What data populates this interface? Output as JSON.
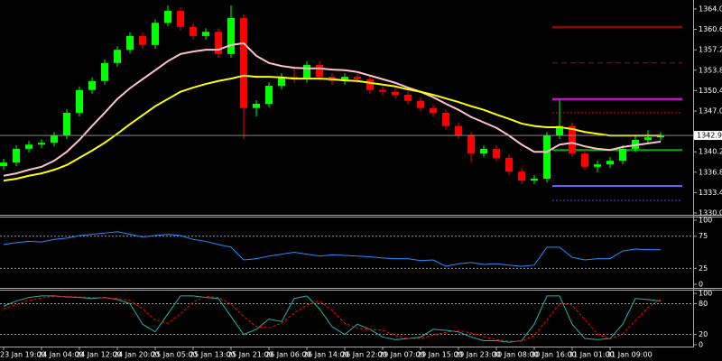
{
  "chart_data": [
    {
      "type": "candlestick",
      "categories": [
        "23 Jan 19:00",
        null,
        null,
        "24 Jan 04:00",
        null,
        null,
        "24 Jan 12:00",
        null,
        null,
        "24 Jan 20:00",
        null,
        null,
        "25 Jan 05:00",
        null,
        null,
        "25 Jan 13:00",
        null,
        null,
        "25 Jan 21:00",
        null,
        null,
        "26 Jan 06:00",
        null,
        null,
        "26 Jan 14:00",
        null,
        null,
        "26 Jan 22:00",
        null,
        null,
        "29 Jan 07:00",
        null,
        null,
        "29 Jan 15:00",
        null,
        null,
        "29 Jan 23:00",
        null,
        null,
        "30 Jan 08:00",
        null,
        null,
        "30 Jan 16:00",
        null,
        null,
        "31 Jan 01:00",
        null,
        null,
        "31 Jan 09:00",
        null,
        null,
        null,
        null
      ],
      "open": [
        1337.8,
        1338.4,
        1340.7,
        1341.4,
        1341.7,
        1342.9,
        1346.7,
        1350.5,
        1352.0,
        1355.0,
        1357.2,
        1359.5,
        1358.0,
        1361.7,
        1363.7,
        1361.0,
        1359.5,
        1360.2,
        1356.5,
        1362.5,
        1347.5,
        1348.2,
        1351.2,
        1352.7,
        1352.3,
        1354.7,
        1352.7,
        1352.0,
        1352.7,
        1352.3,
        1350.5,
        1350.2,
        1349.7,
        1348.7,
        1347.5,
        1346.7,
        1344.5,
        1342.9,
        1339.9,
        1340.7,
        1339.2,
        1336.9,
        1335.4,
        1335.7,
        1342.9,
        1344.5,
        1339.9,
        1337.7,
        1338.1,
        1338.7,
        1340.7,
        1342.2,
        1342.6
      ],
      "high": [
        1339.0,
        1341.3,
        1342.0,
        1342.3,
        1343.5,
        1347.3,
        1351.1,
        1352.6,
        1355.6,
        1357.8,
        1360.1,
        1360.1,
        1362.3,
        1364.6,
        1364.3,
        1361.6,
        1360.8,
        1360.8,
        1364.6,
        1363.1,
        1348.8,
        1351.8,
        1353.3,
        1354.5,
        1355.3,
        1355.3,
        1353.3,
        1353.3,
        1353.3,
        1352.9,
        1351.1,
        1350.8,
        1350.3,
        1349.3,
        1348.1,
        1347.3,
        1345.1,
        1343.5,
        1341.3,
        1341.3,
        1339.8,
        1337.5,
        1336.3,
        1343.5,
        1348.9,
        1345.1,
        1340.5,
        1338.7,
        1339.3,
        1341.3,
        1342.8,
        1343.8,
        1343.5
      ],
      "low": [
        1337.2,
        1337.8,
        1340.1,
        1340.8,
        1341.1,
        1342.3,
        1346.1,
        1349.9,
        1351.4,
        1354.4,
        1356.6,
        1357.4,
        1357.4,
        1361.1,
        1360.4,
        1358.9,
        1358.9,
        1355.9,
        1355.9,
        1342.3,
        1346.1,
        1347.6,
        1350.6,
        1351.7,
        1351.7,
        1352.1,
        1351.4,
        1351.4,
        1351.7,
        1349.9,
        1349.6,
        1349.1,
        1348.1,
        1346.9,
        1346.1,
        1343.9,
        1342.3,
        1338.5,
        1339.3,
        1338.6,
        1336.3,
        1334.8,
        1334.8,
        1335.1,
        1342.3,
        1339.3,
        1337.1,
        1336.8,
        1337.5,
        1338.1,
        1340.1,
        1341.6,
        1342.0
      ],
      "close": [
        1338.4,
        1340.7,
        1341.4,
        1341.7,
        1342.9,
        1346.7,
        1350.5,
        1352.0,
        1355.0,
        1357.2,
        1359.5,
        1358.0,
        1361.7,
        1363.7,
        1361.0,
        1359.5,
        1360.2,
        1356.5,
        1362.5,
        1347.5,
        1348.2,
        1351.2,
        1352.7,
        1352.3,
        1354.7,
        1352.7,
        1352.0,
        1352.7,
        1352.3,
        1350.5,
        1350.2,
        1349.7,
        1348.7,
        1347.5,
        1346.7,
        1344.5,
        1342.9,
        1339.9,
        1340.7,
        1339.2,
        1336.9,
        1335.4,
        1335.7,
        1342.9,
        1344.5,
        1339.9,
        1337.7,
        1338.1,
        1338.7,
        1340.7,
        1342.2,
        1342.6,
        1342.93
      ],
      "up_color": "#00ff00",
      "down_color": "#ff0000",
      "series": [
        {
          "color": "#ffc0cb",
          "values": [
            1336.2,
            1336.6,
            1337.2,
            1337.7,
            1338.7,
            1340.2,
            1342.2,
            1344.5,
            1346.7,
            1349.0,
            1350.8,
            1352.3,
            1353.8,
            1355.3,
            1356.5,
            1356.9,
            1357.2,
            1357.2,
            1358.0,
            1358.3,
            1356.2,
            1355.0,
            1354.5,
            1354.2,
            1354.1,
            1354.1,
            1353.9,
            1353.8,
            1353.5,
            1352.9,
            1352.3,
            1351.7,
            1350.9,
            1350.2,
            1349.3,
            1348.2,
            1347.2,
            1346.0,
            1345.1,
            1344.2,
            1342.9,
            1341.4,
            1340.2,
            1340.2,
            1341.4,
            1341.7,
            1341.1,
            1340.7,
            1340.5,
            1341.0,
            1341.3,
            1341.6,
            1341.9
          ]
        },
        {
          "color": "#ffff00",
          "values": [
            1335.4,
            1335.7,
            1336.2,
            1336.6,
            1337.2,
            1338.0,
            1339.2,
            1340.4,
            1341.7,
            1343.2,
            1344.8,
            1346.3,
            1347.8,
            1349.0,
            1350.2,
            1350.9,
            1351.5,
            1352.0,
            1352.4,
            1352.9,
            1352.7,
            1352.7,
            1352.6,
            1352.4,
            1352.4,
            1352.4,
            1352.3,
            1352.1,
            1352.0,
            1351.7,
            1351.4,
            1351.1,
            1350.6,
            1350.2,
            1349.7,
            1349.1,
            1348.5,
            1347.8,
            1347.2,
            1346.4,
            1345.7,
            1344.9,
            1344.5,
            1344.3,
            1344.3,
            1344.0,
            1343.5,
            1343.2,
            1342.9,
            1342.9,
            1342.9,
            1342.9,
            1342.9
          ]
        }
      ],
      "levels": [
        {
          "value": 1361.0,
          "color": "#b00000",
          "style": "solid"
        },
        {
          "value": 1355.0,
          "color": "#b00000",
          "style": "dashed"
        },
        {
          "value": 1349.0,
          "color": "#ff00ff",
          "style": "solid"
        },
        {
          "value": 1346.7,
          "color": "#ff0000",
          "style": "dotted"
        },
        {
          "value": 1340.5,
          "color": "#00b000",
          "style": "solid"
        },
        {
          "value": 1334.5,
          "color": "#6a6aff",
          "style": "solid"
        },
        {
          "value": 1332.1,
          "color": "#4a4aff",
          "style": "dotted"
        }
      ],
      "last_price": 1342.93,
      "ylim": [
        1329.7,
        1365.5
      ],
      "yticks": [
        {
          "value": 1364,
          "label": "1364.00"
        },
        {
          "value": 1360.6,
          "label": "1360.60"
        },
        {
          "value": 1357.2,
          "label": "1357.20"
        },
        {
          "value": 1353.8,
          "label": "1353.80"
        },
        {
          "value": 1350.4,
          "label": "1350.40"
        },
        {
          "value": 1347,
          "label": "1347.00"
        },
        {
          "value": 1340.2,
          "label": "1340.20"
        },
        {
          "value": 1336.8,
          "label": "1336.80"
        },
        {
          "value": 1333.4,
          "label": "1333.40"
        },
        {
          "value": 1330,
          "label": "1330.00"
        }
      ]
    },
    {
      "type": "line",
      "series": [
        {
          "color": "#1e90ff",
          "values": [
            62,
            65,
            67,
            66,
            70,
            72,
            76,
            78,
            80,
            82,
            78,
            74,
            76,
            78,
            76,
            70,
            67,
            62,
            58,
            38,
            40,
            44,
            47,
            50,
            47,
            44,
            46,
            45,
            44,
            43,
            41,
            40,
            40,
            37,
            38,
            28,
            32,
            34,
            31,
            32,
            30,
            28,
            30,
            58,
            58,
            42,
            38,
            40,
            40,
            52,
            55,
            54,
            54
          ]
        }
      ],
      "levels": [
        75,
        25
      ],
      "ylim": [
        -5.6,
        104.2
      ],
      "yticks": [
        100,
        75,
        25,
        0
      ]
    },
    {
      "type": "line",
      "series": [
        {
          "color": "#20b2aa",
          "values": [
            75,
            85,
            92,
            95,
            95,
            93,
            92,
            90,
            92,
            88,
            80,
            40,
            25,
            60,
            95,
            95,
            92,
            90,
            55,
            20,
            30,
            50,
            45,
            90,
            95,
            70,
            35,
            20,
            40,
            30,
            15,
            10,
            12,
            15,
            30,
            28,
            25,
            15,
            8,
            8,
            5,
            8,
            40,
            95,
            95,
            40,
            12,
            10,
            12,
            40,
            90,
            88,
            85
          ]
        },
        {
          "color": "#ff0000",
          "dash": true,
          "values": [
            70,
            78,
            86,
            91,
            94,
            94,
            93,
            92,
            91,
            90,
            86,
            70,
            48,
            42,
            60,
            83,
            94,
            92,
            79,
            55,
            35,
            33,
            42,
            62,
            77,
            85,
            67,
            42,
            32,
            30,
            28,
            18,
            12,
            12,
            19,
            24,
            28,
            23,
            16,
            10,
            7,
            7,
            18,
            48,
            81,
            77,
            49,
            21,
            11,
            21,
            47,
            73,
            88
          ]
        }
      ],
      "levels": [
        80,
        20
      ],
      "ylim": [
        -3.5,
        105.3
      ],
      "yticks": [
        100,
        80,
        20,
        0
      ]
    }
  ]
}
